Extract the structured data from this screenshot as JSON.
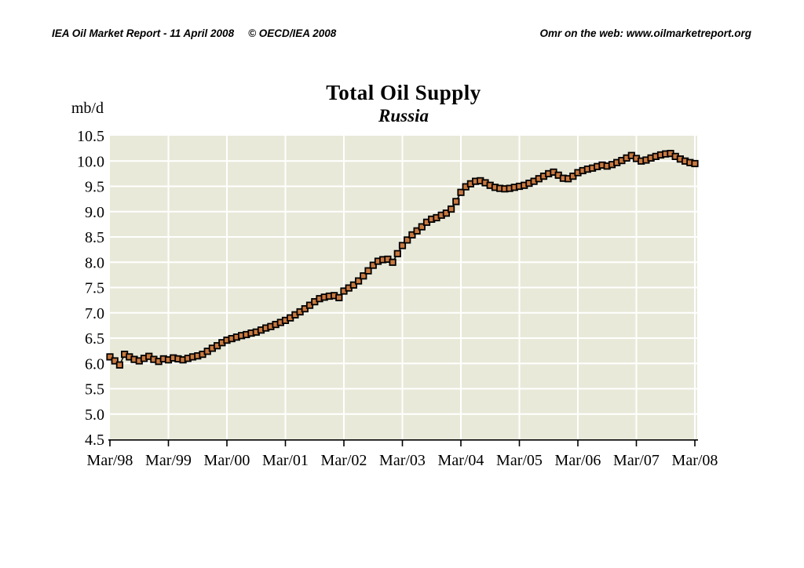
{
  "header": {
    "left_report": "IEA Oil Market Report - 11 April 2008",
    "left_copyright": "© OECD/IEA 2008",
    "right": "Omr on the web: www.oilmarketreport.org"
  },
  "chart_data": {
    "type": "line",
    "title": "Total Oil Supply",
    "subtitle": "Russia",
    "ylabel": "mb/d",
    "xlabel": "",
    "ylim": [
      4.5,
      10.5
    ],
    "ytick_step": 0.5,
    "ytick_labels": [
      "10.5",
      "10.0",
      "9.5",
      "9.0",
      "8.5",
      "8.0",
      "7.5",
      "7.0",
      "6.5",
      "6.0",
      "5.5",
      "5.0",
      "4.5"
    ],
    "x_tick_labels": [
      "Mar/98",
      "Mar/99",
      "Mar/00",
      "Mar/01",
      "Mar/02",
      "Mar/03",
      "Mar/04",
      "Mar/05",
      "Mar/06",
      "Mar/07",
      "Mar/08"
    ],
    "frequency": "monthly",
    "x_start": "Mar/98",
    "x_end": "Mar/08",
    "grid": true,
    "legend": "none",
    "colors": {
      "plot_bg": "#e9e9da",
      "grid": "#ffffff",
      "line": "#000000",
      "marker_fill": "#c9793f",
      "marker_edge": "#000000",
      "axis": "#000000"
    },
    "series": [
      {
        "name": "Russia total oil supply (mb/d)",
        "values": [
          6.13,
          6.05,
          5.97,
          6.18,
          6.13,
          6.08,
          6.05,
          6.1,
          6.14,
          6.08,
          6.04,
          6.09,
          6.07,
          6.11,
          6.09,
          6.07,
          6.1,
          6.13,
          6.15,
          6.18,
          6.24,
          6.3,
          6.35,
          6.41,
          6.46,
          6.49,
          6.52,
          6.55,
          6.57,
          6.6,
          6.62,
          6.66,
          6.7,
          6.73,
          6.77,
          6.81,
          6.85,
          6.9,
          6.96,
          7.02,
          7.08,
          7.15,
          7.22,
          7.28,
          7.31,
          7.33,
          7.34,
          7.3,
          7.43,
          7.49,
          7.55,
          7.63,
          7.73,
          7.83,
          7.94,
          8.02,
          8.05,
          8.06,
          8.0,
          8.17,
          8.33,
          8.44,
          8.54,
          8.62,
          8.7,
          8.79,
          8.85,
          8.88,
          8.93,
          8.97,
          9.05,
          9.2,
          9.38,
          9.49,
          9.55,
          9.6,
          9.61,
          9.57,
          9.52,
          9.48,
          9.46,
          9.45,
          9.46,
          9.48,
          9.5,
          9.52,
          9.56,
          9.6,
          9.65,
          9.7,
          9.75,
          9.78,
          9.72,
          9.66,
          9.65,
          9.7,
          9.77,
          9.81,
          9.84,
          9.86,
          9.89,
          9.92,
          9.9,
          9.93,
          9.97,
          10.01,
          10.06,
          10.11,
          10.05,
          10.0,
          10.02,
          10.06,
          10.09,
          10.12,
          10.14,
          10.15,
          10.09,
          10.04,
          10.0,
          9.97,
          9.95
        ]
      }
    ]
  }
}
